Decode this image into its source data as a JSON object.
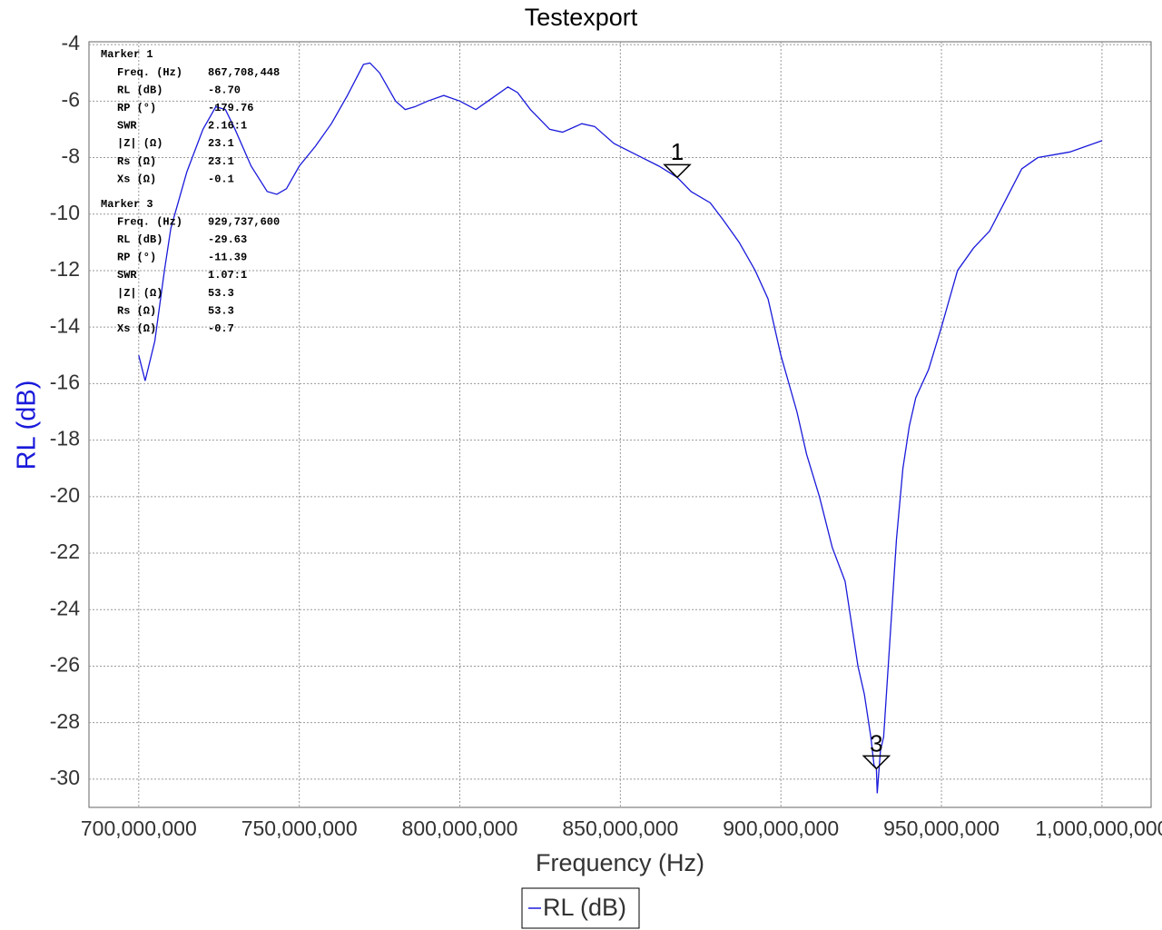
{
  "chart_data": {
    "type": "line",
    "title": "Testexport",
    "x_label": "Frequency (Hz)",
    "y_label": "RL (dB)",
    "xlim": [
      684500000,
      1015300000
    ],
    "ylim": [
      -31,
      -3.9
    ],
    "xticks": [
      {
        "value": 700000000,
        "label": "700,000,000"
      },
      {
        "value": 750000000,
        "label": "750,000,000"
      },
      {
        "value": 800000000,
        "label": "800,000,000"
      },
      {
        "value": 850000000,
        "label": "850,000,000"
      },
      {
        "value": 900000000,
        "label": "900,000,000"
      },
      {
        "value": 950000000,
        "label": "950,000,000"
      },
      {
        "value": 1000000000,
        "label": "1,000,000,000"
      }
    ],
    "yticks": [
      -4,
      -6,
      -8,
      -10,
      -12,
      -14,
      -16,
      -18,
      -20,
      -22,
      -24,
      -26,
      -28,
      -30
    ],
    "grid": true,
    "x": [
      700000000,
      702000000,
      705000000,
      708000000,
      710000000,
      715000000,
      720000000,
      724000000,
      727000000,
      730000000,
      735000000,
      740000000,
      743000000,
      746000000,
      750000000,
      755000000,
      760000000,
      765000000,
      770000000,
      772000000,
      775000000,
      780000000,
      783000000,
      786000000,
      790000000,
      795000000,
      800000000,
      805000000,
      810000000,
      815000000,
      818000000,
      822000000,
      828000000,
      832000000,
      838000000,
      842000000,
      848000000,
      855000000,
      862000000,
      867708448,
      872000000,
      878000000,
      882000000,
      887000000,
      892000000,
      896000000,
      900000000,
      905000000,
      908000000,
      912000000,
      916000000,
      920000000,
      922000000,
      924000000,
      926000000,
      928000000,
      929000000,
      929737600,
      930000000,
      931000000,
      932000000,
      934000000,
      936000000,
      938000000,
      940000000,
      942000000,
      946000000,
      950000000,
      955000000,
      960000000,
      965000000,
      970000000,
      975000000,
      980000000,
      985000000,
      990000000,
      995000000,
      1000000000
    ],
    "series": [
      {
        "name": "RL (dB)",
        "color": "#1a1adb",
        "values": [
          -15.0,
          -15.9,
          -14.5,
          -12.0,
          -10.5,
          -8.5,
          -7.0,
          -6.2,
          -6.3,
          -7.0,
          -8.3,
          -9.2,
          -9.3,
          -9.1,
          -8.3,
          -7.6,
          -6.8,
          -5.8,
          -4.7,
          -4.65,
          -5.0,
          -6.0,
          -6.3,
          -6.2,
          -6.0,
          -5.8,
          -6.0,
          -6.3,
          -5.9,
          -5.5,
          -5.7,
          -6.3,
          -7.0,
          -7.1,
          -6.8,
          -6.9,
          -7.5,
          -7.9,
          -8.3,
          -8.7,
          -9.2,
          -9.6,
          -10.2,
          -11.0,
          -12.0,
          -13.0,
          -15.0,
          -17.0,
          -18.5,
          -20.0,
          -21.8,
          -23.0,
          -24.5,
          -26.0,
          -27.0,
          -28.5,
          -29.5,
          -29.63,
          -30.5,
          -29.0,
          -28.5,
          -25.0,
          -21.5,
          -19.0,
          -17.5,
          -16.5,
          -15.5,
          -14.0,
          -12.0,
          -11.2,
          -10.6,
          -9.5,
          -8.4,
          -8.0,
          -7.9,
          -7.8,
          -7.6,
          -7.4
        ]
      }
    ],
    "markers": [
      {
        "name": "Marker 1",
        "label": "1",
        "x": 867708448,
        "y": -8.7,
        "readout": [
          [
            "Freq. (Hz)",
            "867,708,448"
          ],
          [
            "RL (dB)",
            "-8.70"
          ],
          [
            "RP (°)",
            "-179.76"
          ],
          [
            "SWR",
            "2.16:1"
          ],
          [
            "|Z| (Ω)",
            "23.1"
          ],
          [
            "Rs (Ω)",
            "23.1"
          ],
          [
            "Xs (Ω)",
            "-0.1"
          ]
        ]
      },
      {
        "name": "Marker 3",
        "label": "3",
        "x": 929737600,
        "y": -29.63,
        "readout": [
          [
            "Freq. (Hz)",
            "929,737,600"
          ],
          [
            "RL (dB)",
            "-29.63"
          ],
          [
            "RP (°)",
            "-11.39"
          ],
          [
            "SWR",
            "1.07:1"
          ],
          [
            "|Z| (Ω)",
            "53.3"
          ],
          [
            "Rs (Ω)",
            "53.3"
          ],
          [
            "Xs (Ω)",
            "-0.7"
          ]
        ]
      }
    ]
  }
}
